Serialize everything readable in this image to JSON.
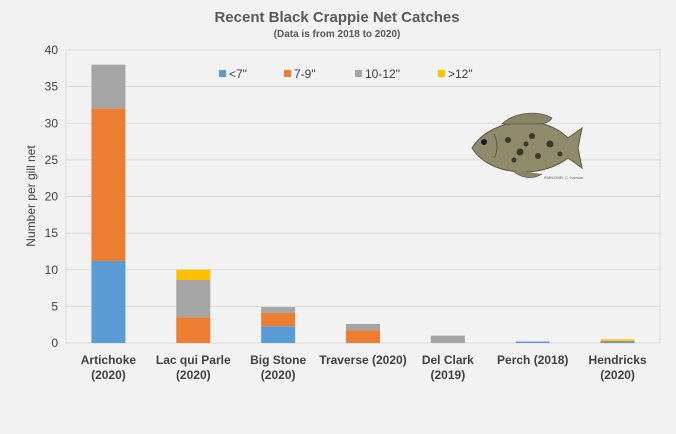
{
  "chart_data": {
    "type": "bar",
    "stacked": true,
    "title": "Recent Black Crappie Net Catches",
    "subtitle": "(Data is from 2018 to 2020)",
    "xlabel": "",
    "ylabel": "Number per gill net",
    "ylim": [
      0,
      40
    ],
    "yticks": [
      0,
      5,
      10,
      15,
      20,
      25,
      30,
      35,
      40
    ],
    "grid": true,
    "legend_position": "top",
    "categories": [
      [
        "Artichoke",
        "(2020)"
      ],
      [
        "Lac qui Parle",
        "(2020)"
      ],
      [
        "Big Stone",
        "(2020)"
      ],
      [
        "Traverse (2020)"
      ],
      [
        "Del Clark",
        "(2019)"
      ],
      [
        "Perch (2018)"
      ],
      [
        "Hendricks",
        "(2020)"
      ]
    ],
    "series": [
      {
        "name": "<7\"",
        "color": "#5b9bd5",
        "values": [
          11.2,
          0,
          2.3,
          0,
          0,
          0.2,
          0.2
        ]
      },
      {
        "name": "7-9\"",
        "color": "#ed7d31",
        "values": [
          20.8,
          3.5,
          1.8,
          1.7,
          0,
          0,
          0.1
        ]
      },
      {
        "name": "10-12\"",
        "color": "#a5a5a5",
        "values": [
          6.0,
          5.1,
          0.8,
          0.9,
          1.0,
          0,
          0
        ]
      },
      {
        "name": ">12\"",
        "color": "#ffc000",
        "values": [
          0,
          1.4,
          0,
          0,
          0,
          0,
          0.2
        ]
      }
    ],
    "image_credit": "©MN DNR, C. Iverson"
  }
}
